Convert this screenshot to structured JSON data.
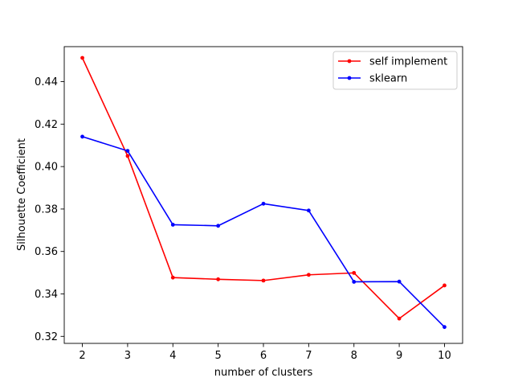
{
  "chart_data": {
    "type": "line",
    "title": "",
    "xlabel": "number of clusters",
    "ylabel": "Silhouette Coefficient",
    "x": [
      2,
      3,
      4,
      5,
      6,
      7,
      8,
      9,
      10
    ],
    "xlim": [
      1.6,
      10.4
    ],
    "ylim": [
      0.3167,
      0.4565
    ],
    "xticks": [
      2,
      3,
      4,
      5,
      6,
      7,
      8,
      9,
      10
    ],
    "yticks": [
      "0.32",
      "0.34",
      "0.36",
      "0.38",
      "0.40",
      "0.42",
      "0.44"
    ],
    "grid": false,
    "legend_position": "top-right",
    "series": [
      {
        "name": "self implement",
        "color": "#ff0000",
        "values": [
          0.4512,
          0.405,
          0.3477,
          0.3469,
          0.3463,
          0.349,
          0.3499,
          0.3284,
          0.344
        ]
      },
      {
        "name": "sklearn",
        "color": "#0000ff",
        "values": [
          0.4141,
          0.4074,
          0.3726,
          0.3721,
          0.3825,
          0.3793,
          0.3457,
          0.3458,
          0.3244
        ]
      }
    ]
  }
}
